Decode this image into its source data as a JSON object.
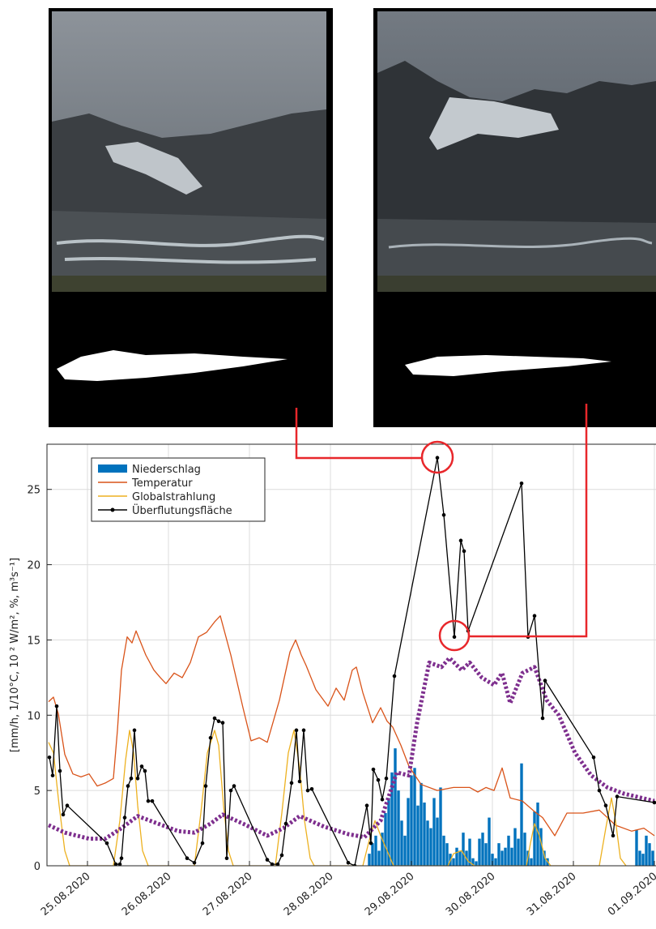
{
  "chart_data": {
    "type": "line",
    "ylabel": "[mm/h, 1/10°C, 10 ² W/m², %, m³s⁻¹]",
    "xlim": [
      -0.5,
      7.0
    ],
    "ylim": [
      0,
      28
    ],
    "xticks": [
      {
        "value": 0,
        "label": "25.08.2020"
      },
      {
        "value": 1,
        "label": "26.08.2020"
      },
      {
        "value": 2,
        "label": "27.08.2020"
      },
      {
        "value": 3,
        "label": "28.08.2020"
      },
      {
        "value": 4,
        "label": "29.08.2020"
      },
      {
        "value": 5,
        "label": "30.08.2020"
      },
      {
        "value": 6,
        "label": "31.08.2020"
      },
      {
        "value": 7,
        "label": "01.09.2020"
      }
    ],
    "yticks": [
      0,
      5,
      10,
      15,
      20,
      25
    ],
    "grid": true,
    "legend": "upper left",
    "series": [
      {
        "name": "Niederschlag",
        "type": "bar",
        "color": "#0072bd",
        "x": [
          3.48,
          3.52,
          3.56,
          3.6,
          3.64,
          3.68,
          3.72,
          3.76,
          3.8,
          3.84,
          3.88,
          3.92,
          3.96,
          4.0,
          4.04,
          4.08,
          4.12,
          4.16,
          4.2,
          4.24,
          4.28,
          4.32,
          4.36,
          4.4,
          4.44,
          4.48,
          4.52,
          4.56,
          4.6,
          4.64,
          4.68,
          4.72,
          4.76,
          4.8,
          4.84,
          4.88,
          4.92,
          4.96,
          5.0,
          5.04,
          5.08,
          5.12,
          5.16,
          5.2,
          5.24,
          5.28,
          5.32,
          5.36,
          5.4,
          5.44,
          5.48,
          5.52,
          5.56,
          5.6,
          5.64,
          5.68,
          6.78,
          6.82,
          6.86,
          6.9,
          6.94,
          6.98
        ],
        "values": [
          0.8,
          1.5,
          2.0,
          1.0,
          2.2,
          3.5,
          4.5,
          6.2,
          7.8,
          5.0,
          3.0,
          2.0,
          4.5,
          6.0,
          6.5,
          4.0,
          5.5,
          4.2,
          3.0,
          2.5,
          4.5,
          3.2,
          5.2,
          2.0,
          1.5,
          0.8,
          0.5,
          1.2,
          1.0,
          2.2,
          1.0,
          1.8,
          0.5,
          0.3,
          1.8,
          2.2,
          1.5,
          3.2,
          0.8,
          0.5,
          1.5,
          1.0,
          1.2,
          2.0,
          1.2,
          2.5,
          1.8,
          6.8,
          2.2,
          1.0,
          0.5,
          3.6,
          4.2,
          2.5,
          1.0,
          0.5,
          2.4,
          1.0,
          0.8,
          2.0,
          1.5,
          1.0
        ]
      },
      {
        "name": "Temperatur",
        "type": "line",
        "color": "#d95319",
        "x": [
          -0.48,
          -0.42,
          -0.36,
          -0.28,
          -0.18,
          -0.08,
          0.02,
          0.12,
          0.22,
          0.32,
          0.37,
          0.42,
          0.49,
          0.55,
          0.6,
          0.72,
          0.82,
          0.9,
          0.97,
          1.07,
          1.17,
          1.27,
          1.37,
          1.47,
          1.57,
          1.64,
          1.77,
          1.92,
          2.02,
          2.12,
          2.22,
          2.37,
          2.5,
          2.57,
          2.64,
          2.7,
          2.82,
          2.97,
          3.07,
          3.17,
          3.27,
          3.32,
          3.4,
          3.52,
          3.62,
          3.7,
          3.77,
          3.87,
          3.97,
          4.12,
          4.32,
          4.52,
          4.72,
          4.82,
          4.92,
          5.02,
          5.12,
          5.22,
          5.37,
          5.52,
          5.62,
          5.77,
          5.92,
          6.12,
          6.32,
          6.52,
          6.72,
          6.87,
          7.0
        ],
        "values": [
          10.9,
          11.2,
          10.1,
          7.4,
          6.1,
          5.9,
          6.1,
          5.3,
          5.5,
          5.8,
          9.0,
          13.0,
          15.2,
          14.8,
          15.6,
          14.0,
          13.0,
          12.5,
          12.1,
          12.8,
          12.5,
          13.5,
          15.2,
          15.5,
          16.2,
          16.6,
          14.0,
          10.5,
          8.3,
          8.5,
          8.2,
          11.0,
          14.2,
          15.0,
          14.0,
          13.3,
          11.7,
          10.6,
          11.8,
          11.0,
          13.0,
          13.2,
          11.5,
          9.5,
          10.5,
          9.6,
          9.2,
          8.0,
          6.6,
          5.4,
          5.0,
          5.2,
          5.2,
          4.9,
          5.2,
          5.0,
          6.5,
          4.5,
          4.3,
          3.6,
          3.2,
          2.0,
          3.5,
          3.5,
          3.7,
          2.7,
          2.3,
          2.5,
          2.0
        ]
      },
      {
        "name": "Globalstrahlung",
        "type": "line",
        "color": "#edb120",
        "x": [
          -0.48,
          -0.42,
          -0.35,
          -0.28,
          -0.22,
          0.32,
          0.4,
          0.47,
          0.52,
          0.57,
          0.62,
          0.68,
          0.75,
          1.32,
          1.4,
          1.48,
          1.57,
          1.62,
          1.68,
          1.74,
          1.8,
          2.32,
          2.4,
          2.48,
          2.55,
          2.62,
          2.68,
          2.75,
          2.8,
          3.4,
          3.47,
          3.55,
          3.62,
          3.7,
          3.78,
          4.45,
          4.52,
          4.62,
          4.7,
          4.78,
          5.42,
          5.47,
          5.52,
          5.58,
          5.65,
          5.72,
          6.32,
          6.4,
          6.47,
          6.52,
          6.58,
          6.65
        ],
        "values": [
          8.2,
          7.5,
          4.0,
          1.0,
          0,
          0,
          3.0,
          7.0,
          9.0,
          7.5,
          4.0,
          1.0,
          0,
          0,
          3.5,
          7.5,
          9.0,
          8.0,
          4.0,
          1.0,
          0,
          0,
          3.5,
          7.5,
          9.0,
          6.5,
          3.0,
          0.5,
          0,
          0,
          1.5,
          3.0,
          2.0,
          1.0,
          0,
          0,
          0.8,
          1.0,
          0.3,
          0,
          0,
          1.5,
          2.8,
          2.0,
          0.5,
          0,
          0,
          2.5,
          4.5,
          3.0,
          0.5,
          0
        ]
      },
      {
        "type": "line",
        "color": "#7e2f8e",
        "style": "dotted",
        "x": [
          -0.48,
          -0.28,
          0.02,
          0.22,
          0.42,
          0.62,
          0.87,
          1.12,
          1.32,
          1.52,
          1.67,
          1.92,
          2.22,
          2.42,
          2.62,
          2.92,
          3.22,
          3.42,
          3.62,
          3.82,
          3.97,
          4.07,
          4.22,
          4.37,
          4.47,
          4.62,
          4.72,
          4.87,
          5.02,
          5.12,
          5.22,
          5.37,
          5.52,
          5.67,
          5.82,
          6.02,
          6.22,
          6.42,
          6.62,
          7.0
        ],
        "values": [
          2.7,
          2.2,
          1.8,
          1.8,
          2.5,
          3.3,
          2.8,
          2.3,
          2.2,
          2.8,
          3.4,
          2.8,
          2.0,
          2.5,
          3.3,
          2.6,
          2.1,
          1.9,
          3.0,
          6.2,
          6.0,
          9.5,
          13.5,
          13.2,
          13.8,
          13.0,
          13.5,
          12.5,
          12.0,
          12.8,
          10.8,
          12.8,
          13.2,
          11.0,
          10.0,
          7.5,
          6.0,
          5.2,
          4.8,
          4.3
        ]
      },
      {
        "name": "Überflutungsfläche",
        "type": "line",
        "color": "#000000",
        "marker": true,
        "x": [
          -0.47,
          -0.43,
          -0.38,
          -0.34,
          -0.3,
          -0.25,
          0.24,
          0.35,
          0.4,
          0.42,
          0.46,
          0.5,
          0.54,
          0.58,
          0.62,
          0.67,
          0.71,
          0.75,
          0.8,
          1.23,
          1.32,
          1.42,
          1.46,
          1.52,
          1.57,
          1.62,
          1.67,
          1.72,
          1.77,
          1.81,
          2.22,
          2.28,
          2.35,
          2.4,
          2.45,
          2.52,
          2.58,
          2.62,
          2.67,
          2.72,
          2.77,
          3.22,
          3.3,
          3.45,
          3.5,
          3.53,
          3.59,
          3.64,
          3.69,
          3.79,
          4.32,
          4.4,
          4.53,
          4.61,
          4.65,
          4.7,
          5.36,
          5.44,
          5.52,
          5.62,
          5.65,
          6.25,
          6.32,
          6.4,
          6.49,
          6.54,
          7.0
        ],
        "values": [
          7.2,
          6.0,
          10.6,
          6.3,
          3.4,
          4.0,
          1.5,
          0.1,
          0.1,
          0.5,
          3.2,
          5.3,
          5.8,
          9.0,
          5.8,
          6.6,
          6.3,
          4.3,
          4.3,
          0.5,
          0.2,
          1.5,
          5.3,
          8.5,
          9.8,
          9.6,
          9.5,
          0.5,
          5.0,
          5.3,
          0.4,
          0.1,
          0.1,
          0.7,
          2.8,
          5.5,
          9.0,
          5.6,
          9.0,
          5.0,
          5.1,
          0.2,
          0,
          4.0,
          1.5,
          6.4,
          5.7,
          4.4,
          5.8,
          12.6,
          27.1,
          23.3,
          15.2,
          21.6,
          20.9,
          15.6,
          25.4,
          15.2,
          16.6,
          9.8,
          12.3,
          7.2,
          5.0,
          4.0,
          2.0,
          4.6,
          4.2
        ]
      }
    ]
  }
}
